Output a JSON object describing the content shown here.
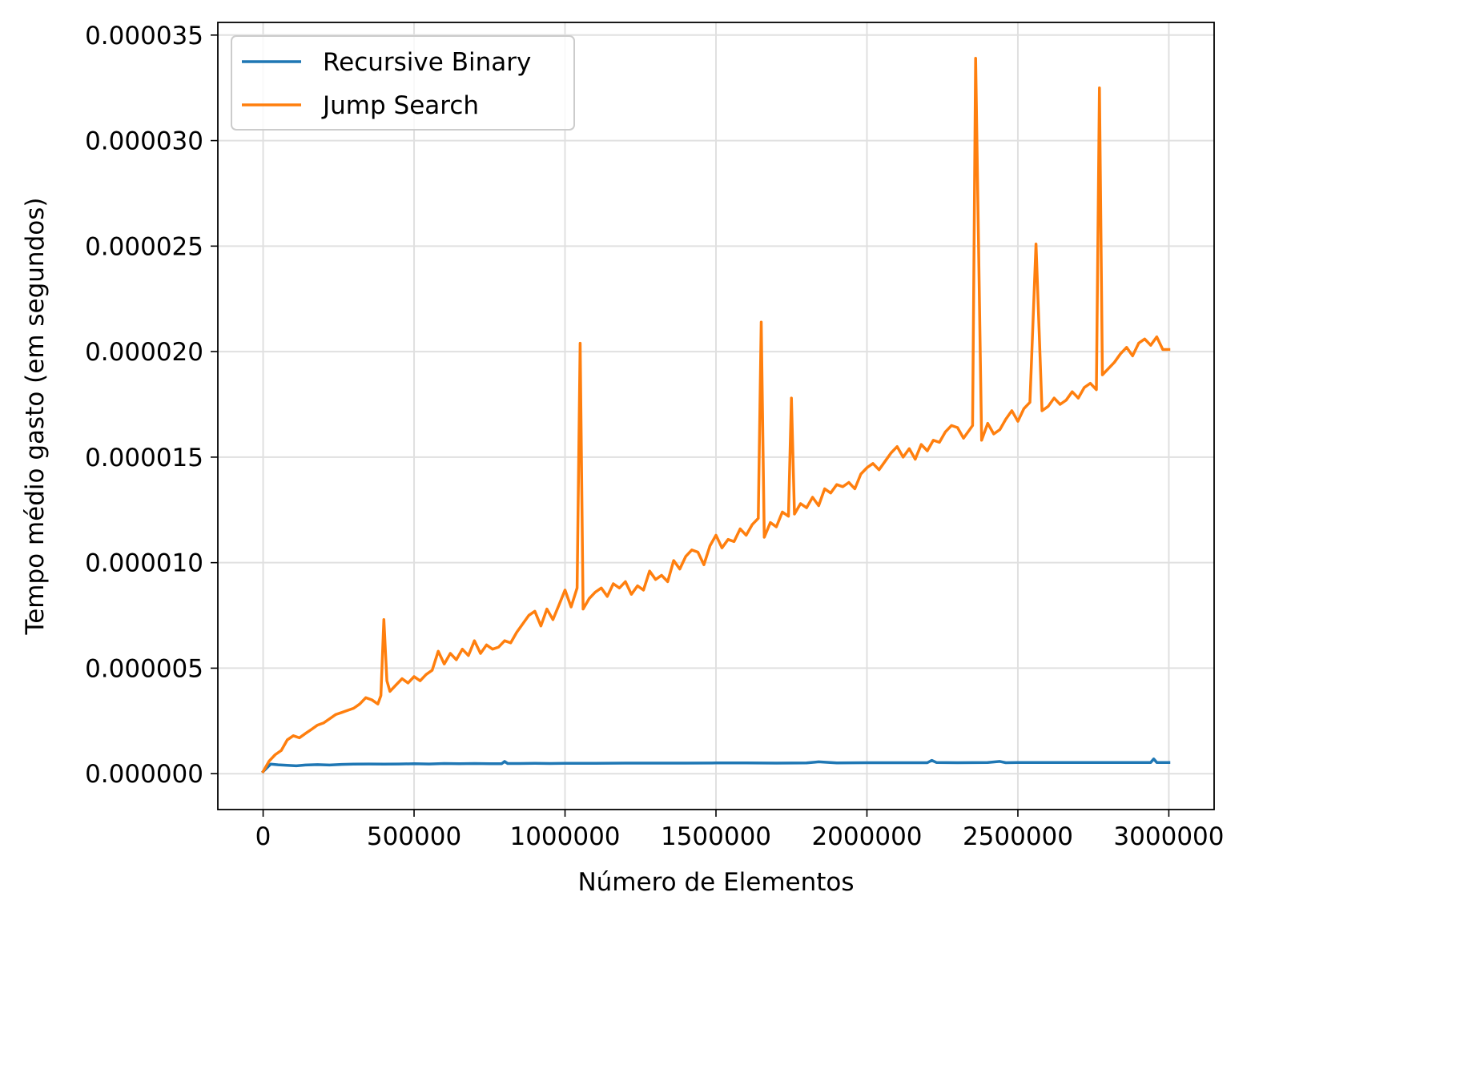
{
  "chart_data": {
    "type": "line",
    "title": "",
    "xlabel": "Número de Elementos",
    "ylabel": "Tempo médio gasto (em segundos)",
    "xlim": [
      -150000,
      3150000
    ],
    "ylim": [
      -1.7e-06,
      3.56e-05
    ],
    "grid": true,
    "legend_position": "top-left",
    "xticks": [
      0,
      500000,
      1000000,
      1500000,
      2000000,
      2500000,
      3000000
    ],
    "xtick_labels": [
      "0",
      "500000",
      "1000000",
      "1500000",
      "2000000",
      "2500000",
      "3000000"
    ],
    "yticks": [
      0,
      5e-06,
      1e-05,
      1.5e-05,
      2e-05,
      2.5e-05,
      3e-05,
      3.5e-05
    ],
    "ytick_labels": [
      "0.000000",
      "0.000005",
      "0.000010",
      "0.000015",
      "0.000020",
      "0.000025",
      "0.000030",
      "0.000035"
    ],
    "series": [
      {
        "name": "Recursive Binary",
        "color": "#1f77b4",
        "x": [
          0,
          25000,
          50000,
          80000,
          110000,
          140000,
          180000,
          220000,
          260000,
          300000,
          350000,
          400000,
          450000,
          500000,
          550000,
          600000,
          650000,
          700000,
          750000,
          790000,
          800000,
          810000,
          850000,
          900000,
          950000,
          1000000,
          1100000,
          1200000,
          1300000,
          1400000,
          1500000,
          1600000,
          1700000,
          1800000,
          1840000,
          1900000,
          2000000,
          2100000,
          2200000,
          2215000,
          2230000,
          2300000,
          2400000,
          2440000,
          2460000,
          2500000,
          2600000,
          2700000,
          2800000,
          2900000,
          2940000,
          2950000,
          2960000,
          3000000
        ],
        "values": [
          1e-07,
          4.5e-07,
          4.2e-07,
          4e-07,
          3.7e-07,
          4.1e-07,
          4.3e-07,
          4.1e-07,
          4.4e-07,
          4.5e-07,
          4.6e-07,
          4.5e-07,
          4.6e-07,
          4.7e-07,
          4.6e-07,
          4.8e-07,
          4.7e-07,
          4.8e-07,
          4.7e-07,
          4.7e-07,
          5.8e-07,
          4.8e-07,
          4.8e-07,
          4.9e-07,
          4.8e-07,
          4.9e-07,
          4.9e-07,
          5e-07,
          5e-07,
          5e-07,
          5.1e-07,
          5.1e-07,
          5e-07,
          5.1e-07,
          5.6e-07,
          5.1e-07,
          5.2e-07,
          5.2e-07,
          5.2e-07,
          6.3e-07,
          5.3e-07,
          5.2e-07,
          5.3e-07,
          5.8e-07,
          5.2e-07,
          5.3e-07,
          5.3e-07,
          5.3e-07,
          5.3e-07,
          5.3e-07,
          5.3e-07,
          7e-07,
          5.3e-07,
          5.3e-07
        ]
      },
      {
        "name": "Jump Search",
        "color": "#ff7f0e",
        "x": [
          0,
          20000,
          40000,
          60000,
          80000,
          100000,
          120000,
          140000,
          160000,
          180000,
          200000,
          220000,
          240000,
          260000,
          280000,
          300000,
          320000,
          340000,
          360000,
          380000,
          390000,
          400000,
          410000,
          420000,
          440000,
          460000,
          480000,
          500000,
          520000,
          540000,
          560000,
          580000,
          600000,
          620000,
          640000,
          660000,
          680000,
          700000,
          720000,
          740000,
          760000,
          780000,
          800000,
          820000,
          840000,
          860000,
          880000,
          900000,
          920000,
          940000,
          960000,
          980000,
          1000000,
          1020000,
          1040000,
          1050000,
          1060000,
          1080000,
          1100000,
          1120000,
          1140000,
          1160000,
          1180000,
          1200000,
          1220000,
          1240000,
          1260000,
          1280000,
          1300000,
          1320000,
          1340000,
          1360000,
          1380000,
          1400000,
          1420000,
          1440000,
          1460000,
          1480000,
          1500000,
          1520000,
          1540000,
          1560000,
          1580000,
          1600000,
          1620000,
          1640000,
          1650000,
          1660000,
          1680000,
          1700000,
          1720000,
          1740000,
          1750000,
          1760000,
          1780000,
          1800000,
          1820000,
          1840000,
          1860000,
          1880000,
          1900000,
          1920000,
          1940000,
          1960000,
          1980000,
          2000000,
          2020000,
          2040000,
          2060000,
          2080000,
          2100000,
          2120000,
          2140000,
          2160000,
          2180000,
          2200000,
          2220000,
          2240000,
          2260000,
          2280000,
          2300000,
          2320000,
          2340000,
          2350000,
          2360000,
          2380000,
          2400000,
          2420000,
          2440000,
          2460000,
          2480000,
          2500000,
          2520000,
          2540000,
          2560000,
          2580000,
          2600000,
          2620000,
          2640000,
          2660000,
          2680000,
          2700000,
          2720000,
          2740000,
          2760000,
          2770000,
          2780000,
          2800000,
          2820000,
          2840000,
          2860000,
          2880000,
          2900000,
          2920000,
          2940000,
          2960000,
          2980000,
          3000000
        ],
        "values": [
          1e-07,
          6e-07,
          9e-07,
          1.1e-06,
          1.6e-06,
          1.8e-06,
          1.7e-06,
          1.9e-06,
          2.1e-06,
          2.3e-06,
          2.4e-06,
          2.6e-06,
          2.8e-06,
          2.9e-06,
          3e-06,
          3.1e-06,
          3.3e-06,
          3.6e-06,
          3.5e-06,
          3.3e-06,
          3.7e-06,
          7.3e-06,
          4.4e-06,
          3.9e-06,
          4.2e-06,
          4.5e-06,
          4.3e-06,
          4.6e-06,
          4.4e-06,
          4.7e-06,
          4.9e-06,
          5.8e-06,
          5.2e-06,
          5.7e-06,
          5.4e-06,
          5.9e-06,
          5.6e-06,
          6.3e-06,
          5.7e-06,
          6.1e-06,
          5.9e-06,
          6e-06,
          6.3e-06,
          6.2e-06,
          6.7e-06,
          7.1e-06,
          7.5e-06,
          7.7e-06,
          7e-06,
          7.8e-06,
          7.3e-06,
          8e-06,
          8.7e-06,
          7.9e-06,
          8.8e-06,
          2.04e-05,
          7.8e-06,
          8.3e-06,
          8.6e-06,
          8.8e-06,
          8.4e-06,
          9e-06,
          8.8e-06,
          9.1e-06,
          8.5e-06,
          8.9e-06,
          8.7e-06,
          9.6e-06,
          9.2e-06,
          9.4e-06,
          9.1e-06,
          1.01e-05,
          9.7e-06,
          1.03e-05,
          1.06e-05,
          1.05e-05,
          9.9e-06,
          1.08e-05,
          1.13e-05,
          1.07e-05,
          1.11e-05,
          1.1e-05,
          1.16e-05,
          1.13e-05,
          1.18e-05,
          1.21e-05,
          2.14e-05,
          1.12e-05,
          1.19e-05,
          1.17e-05,
          1.24e-05,
          1.22e-05,
          1.78e-05,
          1.23e-05,
          1.28e-05,
          1.26e-05,
          1.31e-05,
          1.27e-05,
          1.35e-05,
          1.33e-05,
          1.37e-05,
          1.36e-05,
          1.38e-05,
          1.35e-05,
          1.42e-05,
          1.45e-05,
          1.47e-05,
          1.44e-05,
          1.48e-05,
          1.52e-05,
          1.55e-05,
          1.5e-05,
          1.54e-05,
          1.49e-05,
          1.56e-05,
          1.53e-05,
          1.58e-05,
          1.57e-05,
          1.62e-05,
          1.65e-05,
          1.64e-05,
          1.59e-05,
          1.63e-05,
          1.65e-05,
          3.39e-05,
          1.58e-05,
          1.66e-05,
          1.61e-05,
          1.63e-05,
          1.68e-05,
          1.72e-05,
          1.67e-05,
          1.73e-05,
          1.76e-05,
          2.51e-05,
          1.72e-05,
          1.74e-05,
          1.78e-05,
          1.75e-05,
          1.77e-05,
          1.81e-05,
          1.78e-05,
          1.83e-05,
          1.85e-05,
          1.82e-05,
          3.25e-05,
          1.89e-05,
          1.92e-05,
          1.95e-05,
          1.99e-05,
          2.02e-05,
          1.98e-05,
          2.04e-05,
          2.06e-05,
          2.03e-05,
          2.07e-05,
          2.01e-05,
          2.01e-05
        ]
      }
    ]
  }
}
